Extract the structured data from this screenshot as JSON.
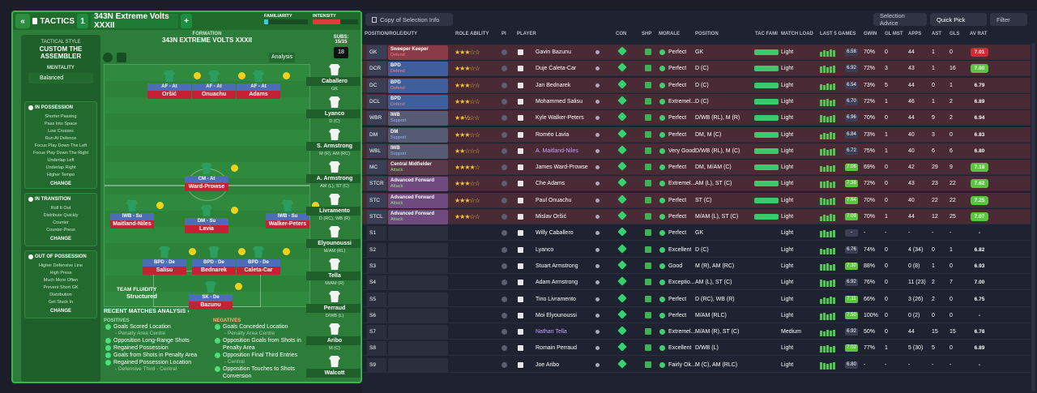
{
  "tactics": {
    "back": "«",
    "label": "TACTICS",
    "slot": "1",
    "name": "343N Extreme Volts XXXII",
    "add": "+",
    "familiarity": "FAMILIARITY",
    "intensity": "INTENSITY"
  },
  "style": {
    "label": "TACTICAL STYLE",
    "name": "CUSTOM THE ASSEMBLER",
    "mentality_label": "MENTALITY",
    "mentality": "Balanced",
    "in_possession": "IN POSSESSION",
    "in_poss_items": [
      "Shorter Passing",
      "Pass Into Space",
      "Low Crosses",
      "Run At Defence",
      "Focus Play Down The Left",
      "Focus Play Down The Right",
      "Underlap Left",
      "Underlap Right",
      "Higher Tempo"
    ],
    "transition": "IN TRANSITION",
    "trans_items": [
      "Roll It Out",
      "Distribute Quickly",
      "Counter",
      "Counter-Press"
    ],
    "out_possession": "OUT OF POSSESSION",
    "out_items": [
      "Higher Defensive Line",
      "High Press",
      "Much More Often",
      "Prevent Short GK",
      "Distribution",
      "Get Stuck In"
    ],
    "change": "CHANGE"
  },
  "formation": {
    "label": "FORMATION",
    "name": "343N EXTREME VOLTS XXXII",
    "analysis": "Analysis",
    "fluidity_label": "TEAM FLUIDITY",
    "fluidity": "Structured",
    "players": [
      {
        "role": "AF - At",
        "name": "Oršić"
      },
      {
        "role": "AF - At",
        "name": "Onuachu"
      },
      {
        "role": "AF - At",
        "name": "Adams"
      },
      {
        "role": "CM - At",
        "name": "Ward-Prowse"
      },
      {
        "role": "IWB - Su",
        "name": "Maitland-Niles"
      },
      {
        "role": "DM - Su",
        "name": "Lavia"
      },
      {
        "role": "IWB - Su",
        "name": "Walker-Peters"
      },
      {
        "role": "BPD - De",
        "name": "Salisu"
      },
      {
        "role": "BPD - De",
        "name": "Bednarek"
      },
      {
        "role": "BPD - De",
        "name": "Caleta-Car"
      },
      {
        "role": "SK - De",
        "name": "Bazunu"
      }
    ]
  },
  "subs": {
    "label": "SUBS:",
    "count": "15/15",
    "num": "18",
    "list": [
      {
        "name": "Caballero",
        "pos": "GK"
      },
      {
        "name": "Lyanco",
        "pos": "D (C)"
      },
      {
        "name": "S. Armstrong",
        "pos": "M (R), AM (RC)"
      },
      {
        "name": "A. Armstrong",
        "pos": "AM (L), ST (C)"
      },
      {
        "name": "Livramento",
        "pos": "D (RC), WB (R)"
      },
      {
        "name": "Elyounoussi",
        "pos": "M/AM (RL)"
      },
      {
        "name": "Tella",
        "pos": "M/AM (R)"
      },
      {
        "name": "Perraud",
        "pos": "D/WB (L)"
      },
      {
        "name": "Aribo",
        "pos": "M (C)"
      },
      {
        "name": "Walcott",
        "pos": ""
      }
    ]
  },
  "analysis": {
    "title": "RECENT MATCHES ANALYSIS ›",
    "positives_label": "POSITIVES",
    "negatives_label": "NEGATIVES",
    "positives": [
      {
        "t": "Goals Scored Location",
        "s": "- Penalty Area Centre"
      },
      {
        "t": "Opposition Long-Range Shots",
        "s": ""
      },
      {
        "t": "Regained Possession",
        "s": ""
      },
      {
        "t": "Goals from Shots in Penalty Area",
        "s": ""
      },
      {
        "t": "Regained Possession Location",
        "s": "- Defensive Third - Central"
      }
    ],
    "negatives": [
      {
        "t": "Goals Conceded Location",
        "s": "- Penalty Area Centre"
      },
      {
        "t": "Opposition Goals from Shots in Penalty Area",
        "s": ""
      },
      {
        "t": "Opposition Final Third Entries",
        "s": "- Central"
      },
      {
        "t": "Opposition Touches to Shots Conversion",
        "s": ""
      }
    ]
  },
  "toolbar": {
    "copy": "Copy of Selection Info",
    "advice": "Selection Advice",
    "quick": "Quick Pick",
    "filter": "Filter"
  },
  "columns": [
    "POSITION/ROLE/DUTY",
    "ROLE ABILITY",
    "PI",
    "PLAYER",
    "CON",
    "SHP",
    "MORALE",
    "POSITION",
    "TAC FAMI",
    "MATCH LOAD",
    "LAST 5 GAMES",
    "GWIN",
    "GL MST",
    "APPS",
    "AST",
    "GLS",
    "AV RAT"
  ],
  "rows": [
    {
      "p": "GK",
      "r1": "Sweeper Keeper",
      "r2": "Defend",
      "rc": "#8a3b47",
      "st": "★★★☆☆",
      "pl": "Gavin Bazunu",
      "mo": "Perfect",
      "pos": "GK",
      "ld": "Light",
      "l5": "6.58",
      "gw": "70%",
      "gm": "0",
      "ap": "44",
      "as": "1",
      "gl": "0",
      "av": "7.01",
      "ac": "#d22b36",
      "bg": "#4a2a35"
    },
    {
      "p": "DCR",
      "r1": "BPD",
      "r2": "Defend",
      "rc": "#3f5f9c",
      "st": "★★★☆☆",
      "pl": "Duje Ćaleta-Car",
      "mo": "Perfect",
      "pos": "D (C)",
      "ld": "Light",
      "l5": "6.92",
      "gw": "72%",
      "gm": "3",
      "ap": "43",
      "as": "1",
      "gl": "16",
      "av": "7.00",
      "ac": "#5ac63e",
      "bg": "#4a2a35"
    },
    {
      "p": "DC",
      "r1": "BPD",
      "r2": "Defend",
      "rc": "#3f5f9c",
      "st": "★★★☆☆",
      "pl": "Jan Bednarek",
      "mo": "Perfect",
      "pos": "D (C)",
      "ld": "Light",
      "l5": "6.54",
      "gw": "73%",
      "gm": "5",
      "ap": "44",
      "as": "0",
      "gl": "1",
      "av": "6.79",
      "ac": "",
      "bg": "#4a2a35"
    },
    {
      "p": "DCL",
      "r1": "BPD",
      "r2": "Defend",
      "rc": "#3f5f9c",
      "st": "★★★☆☆",
      "pl": "Mohammed Salisu",
      "mo": "Extremel...",
      "pos": "D (C)",
      "ld": "Light",
      "l5": "6.70",
      "gw": "72%",
      "gm": "1",
      "ap": "46",
      "as": "1",
      "gl": "2",
      "av": "6.89",
      "ac": "",
      "bg": "#4a2a35"
    },
    {
      "p": "WBR",
      "r1": "IWB",
      "r2": "Support",
      "rc": "#565a72",
      "st": "★★½☆☆",
      "pl": "Kyle Walker-Peters",
      "mo": "Perfect",
      "pos": "D/WB (RL), M (R)",
      "ld": "Light",
      "l5": "6.96",
      "gw": "70%",
      "gm": "0",
      "ap": "44",
      "as": "9",
      "gl": "2",
      "av": "6.94",
      "ac": "",
      "bg": "#4a2a35"
    },
    {
      "p": "DM",
      "r1": "DM",
      "r2": "Support",
      "rc": "#565a72",
      "st": "★★★☆☆",
      "pl": "Roméo Lavia",
      "mo": "Perfect",
      "pos": "DM, M (C)",
      "ld": "Light",
      "l5": "6.84",
      "gw": "73%",
      "gm": "1",
      "ap": "40",
      "as": "3",
      "gl": "0",
      "av": "6.83",
      "ac": "",
      "bg": "#4a2a35"
    },
    {
      "p": "WBL",
      "r1": "IWB",
      "r2": "Support",
      "rc": "#565a72",
      "st": "★★☆☆☆",
      "pl": "A. Maitland-Niles",
      "mo": "Very Good",
      "pos": "D/WB (RL), M (C)",
      "ld": "Light",
      "l5": "6.72",
      "gw": "75%",
      "gm": "1",
      "ap": "40",
      "as": "6",
      "gl": "6",
      "av": "6.80",
      "ac": "",
      "bg": "#4a2a35"
    },
    {
      "p": "MC",
      "r1": "Central Midfielder",
      "r2": "Attack",
      "rc": "#5a3a4a",
      "st": "★★★★☆",
      "pl": "James Ward-Prowse",
      "mo": "Perfect",
      "pos": "DM, M/AM (C)",
      "ld": "Light",
      "l5": "7.06",
      "gw": "69%",
      "gm": "0",
      "ap": "42",
      "as": "29",
      "gl": "9",
      "av": "7.18",
      "ac": "#5ac63e",
      "bg": "#4a2a35"
    },
    {
      "p": "STCR",
      "r1": "Advanced Forward",
      "r2": "Attack",
      "rc": "#6e4a7e",
      "st": "★★★☆☆",
      "pl": "Che Adams",
      "mo": "Extremel...",
      "pos": "AM (L), ST (C)",
      "ld": "Light",
      "l5": "7.38",
      "gw": "72%",
      "gm": "0",
      "ap": "43",
      "as": "23",
      "gl": "22",
      "av": "7.62",
      "ac": "#5ac63e",
      "bg": "#4a2a35"
    },
    {
      "p": "STC",
      "r1": "Advanced Forward",
      "r2": "Attack",
      "rc": "#6e4a7e",
      "st": "★★★☆☆",
      "pl": "Paul Onuachu",
      "mo": "Perfect",
      "pos": "ST (C)",
      "ld": "Light",
      "l5": "7.64",
      "gw": "70%",
      "gm": "0",
      "ap": "40",
      "as": "22",
      "gl": "22",
      "av": "7.25",
      "ac": "#5ac63e",
      "bg": "#4a2a35"
    },
    {
      "p": "STCL",
      "r1": "Advanced Forward",
      "r2": "Attack",
      "rc": "#6e4a7e",
      "st": "★★★☆☆",
      "pl": "Mislav Oršić",
      "mo": "Perfect",
      "pos": "M/AM (L), ST (C)",
      "ld": "Light",
      "l5": "7.09",
      "gw": "70%",
      "gm": "1",
      "ap": "44",
      "as": "12",
      "gl": "25",
      "av": "7.07",
      "ac": "#5ac63e",
      "bg": "#4a2a35"
    },
    {
      "p": "S1",
      "r1": "",
      "r2": "",
      "rc": "",
      "st": "",
      "pl": "Willy Caballero",
      "mo": "Perfect",
      "pos": "GK",
      "ld": "Light",
      "l5": "-",
      "gw": "-",
      "gm": "-",
      "ap": "-",
      "as": "-",
      "gl": "-",
      "av": "-",
      "ac": "",
      "bg": "#1f2230"
    },
    {
      "p": "S2",
      "r1": "",
      "r2": "",
      "rc": "",
      "st": "",
      "pl": "Lyanco",
      "mo": "Excellent",
      "pos": "D (C)",
      "ld": "Light",
      "l5": "6.76",
      "gw": "74%",
      "gm": "0",
      "ap": "4 (34)",
      "as": "0",
      "gl": "1",
      "av": "6.82",
      "ac": "",
      "bg": "#1f2230"
    },
    {
      "p": "S3",
      "r1": "",
      "r2": "",
      "rc": "",
      "st": "",
      "pl": "Stuart Armstrong",
      "mo": "Good",
      "pos": "M (R), AM (RC)",
      "ld": "Light",
      "l5": "7.30",
      "gw": "88%",
      "gm": "0",
      "ap": "0 (8)",
      "as": "1",
      "gl": "0",
      "av": "6.93",
      "ac": "",
      "bg": "#1f2230"
    },
    {
      "p": "S4",
      "r1": "",
      "r2": "",
      "rc": "",
      "st": "",
      "pl": "Adam Armstrong",
      "mo": "Exceptio...",
      "pos": "AM (L), ST (C)",
      "ld": "Light",
      "l5": "6.92",
      "gw": "76%",
      "gm": "0",
      "ap": "11 (23)",
      "as": "2",
      "gl": "7",
      "av": "7.00",
      "ac": "",
      "bg": "#1f2230"
    },
    {
      "p": "S5",
      "r1": "",
      "r2": "",
      "rc": "",
      "st": "",
      "pl": "Tino Livramento",
      "mo": "Perfect",
      "pos": "D (RC), WB (R)",
      "ld": "Light",
      "l5": "7.11",
      "gw": "66%",
      "gm": "0",
      "ap": "3 (26)",
      "as": "2",
      "gl": "0",
      "av": "6.75",
      "ac": "",
      "bg": "#1f2230"
    },
    {
      "p": "S6",
      "r1": "",
      "r2": "",
      "rc": "",
      "st": "",
      "pl": "Moi Elyounoussi",
      "mo": "Perfect",
      "pos": "M/AM (RLC)",
      "ld": "Light",
      "l5": "7.50",
      "gw": "100%",
      "gm": "0",
      "ap": "0 (2)",
      "as": "0",
      "gl": "0",
      "av": "-",
      "ac": "",
      "bg": "#1f2230"
    },
    {
      "p": "S7",
      "r1": "",
      "r2": "",
      "rc": "",
      "st": "",
      "pl": "Nathan Tella",
      "mo": "Extremel...",
      "pos": "M/AM (R), ST (C)",
      "ld": "Medium",
      "l5": "6.92",
      "gw": "50%",
      "gm": "0",
      "ap": "44",
      "as": "15",
      "gl": "15",
      "av": "6.78",
      "ac": "",
      "bg": "#1f2230"
    },
    {
      "p": "S8",
      "r1": "",
      "r2": "",
      "rc": "",
      "st": "",
      "pl": "Romain Perraud",
      "mo": "Excellent",
      "pos": "D/WB (L)",
      "ld": "Light",
      "l5": "7.02",
      "gw": "77%",
      "gm": "1",
      "ap": "5 (30)",
      "as": "5",
      "gl": "0",
      "av": "6.89",
      "ac": "",
      "bg": "#1f2230"
    },
    {
      "p": "S9",
      "r1": "",
      "r2": "",
      "rc": "",
      "st": "",
      "pl": "Joe Aribo",
      "mo": "Fairly Ok...",
      "pos": "M (C), AM (RLC)",
      "ld": "Light",
      "l5": "6.80",
      "gw": "-",
      "gm": "-",
      "ap": "-",
      "as": "-",
      "gl": "-",
      "av": "-",
      "ac": "",
      "bg": "#1f2230"
    }
  ]
}
